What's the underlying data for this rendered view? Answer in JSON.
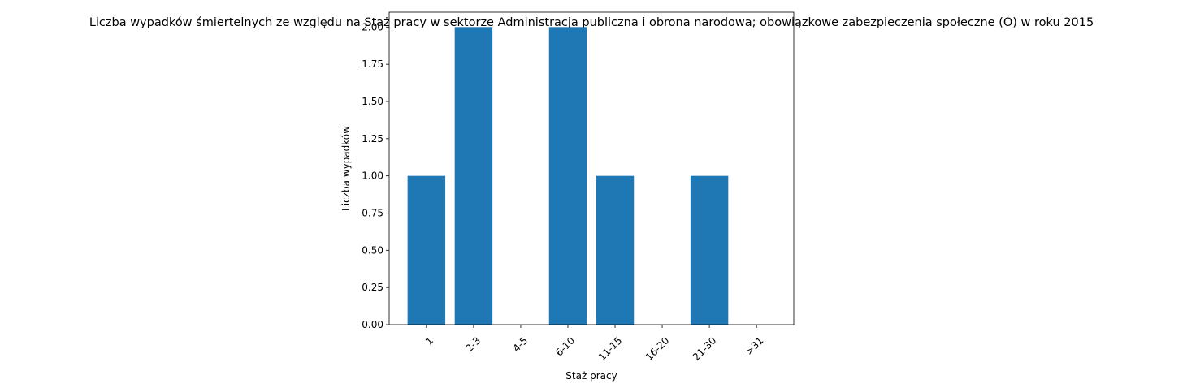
{
  "chart_data": {
    "type": "bar",
    "title": "Liczba wypadków śmiertelnych ze względu na Staż pracy w sektorze Administracja publiczna i obrona narodowa; obowiązkowe zabezpieczenia społeczne  (O)  w roku 2015",
    "xlabel": "Staż pracy",
    "ylabel": "Liczba wypadków",
    "categories": [
      "1",
      "2-3",
      "4-5",
      "6-10",
      "11-15",
      "16-20",
      "21-30",
      ">31"
    ],
    "values": [
      1,
      2,
      0,
      2,
      1,
      0,
      1,
      0
    ],
    "ylim": [
      0,
      2.1
    ],
    "yticks": [
      "0.00",
      "0.25",
      "0.50",
      "0.75",
      "1.00",
      "1.25",
      "1.50",
      "1.75",
      "2.00"
    ],
    "grid": false,
    "bar_color": "#1f77b4"
  }
}
